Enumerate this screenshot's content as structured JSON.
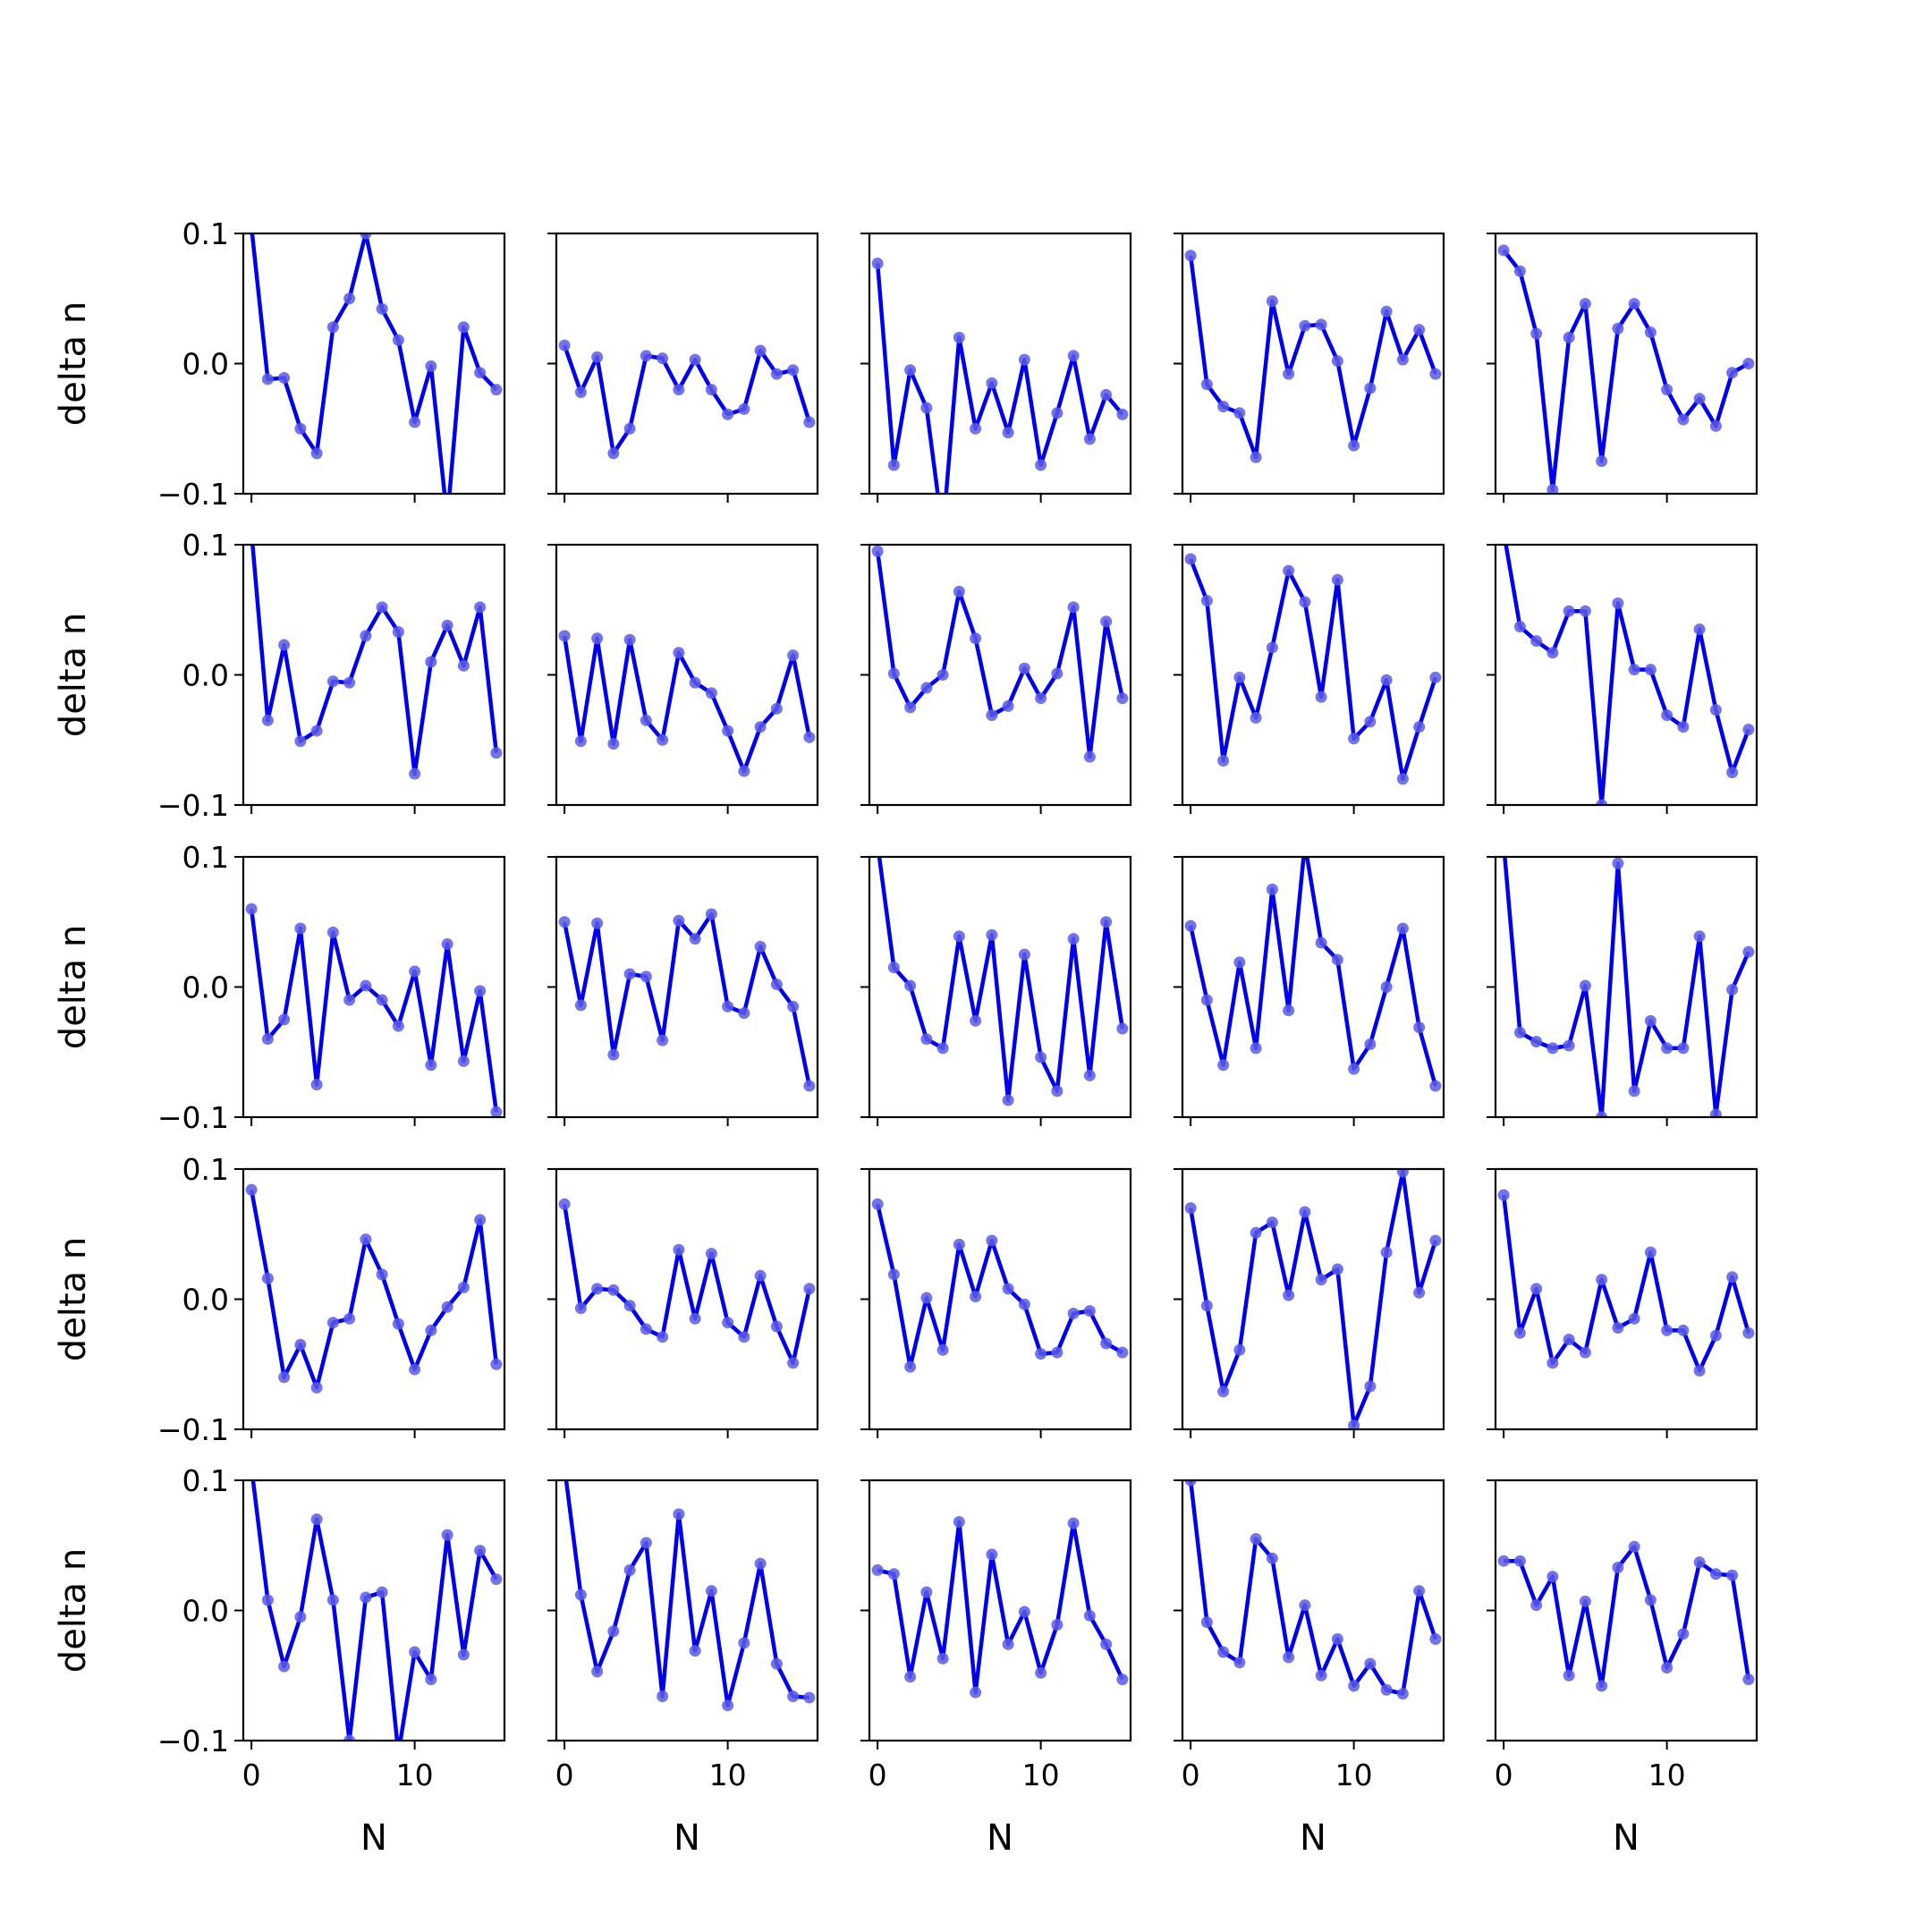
{
  "figure": {
    "xlabel": "N",
    "ylabel": "delta n",
    "x_tick_labels": [
      "0",
      "10"
    ],
    "y_tick_labels": [
      "0.1",
      "0.0",
      "−0.1"
    ]
  },
  "colors": {
    "line": "#0000ee",
    "marker": "#5a5ae6",
    "axes": "#000000",
    "background": "#ffffff"
  },
  "chart_data": {
    "type": "line",
    "layout": "grid-5x5",
    "shared_x": true,
    "shared_y": true,
    "x": [
      0,
      1,
      2,
      3,
      4,
      5,
      6,
      7,
      8,
      9,
      10,
      11,
      12,
      13,
      14,
      15
    ],
    "xlim": [
      -0.5,
      15.5
    ],
    "ylim": [
      -0.1,
      0.1
    ],
    "xlabel": "N",
    "ylabel": "delta n",
    "grid": false,
    "panels": [
      {
        "values": [
          0.105,
          -0.012,
          -0.011,
          -0.05,
          -0.069,
          0.028,
          0.05,
          0.1,
          0.042,
          0.018,
          -0.045,
          -0.002,
          -0.12,
          0.028,
          -0.007,
          -0.02
        ]
      },
      {
        "values": [
          0.014,
          -0.022,
          0.005,
          -0.069,
          -0.05,
          0.006,
          0.004,
          -0.02,
          0.003,
          -0.02,
          -0.039,
          -0.035,
          0.01,
          -0.008,
          -0.005,
          -0.045
        ]
      },
      {
        "values": [
          0.077,
          -0.078,
          -0.005,
          -0.034,
          -0.13,
          0.02,
          -0.05,
          -0.015,
          -0.053,
          0.003,
          -0.078,
          -0.038,
          0.006,
          -0.058,
          -0.024,
          -0.039
        ]
      },
      {
        "values": [
          0.083,
          -0.016,
          -0.033,
          -0.038,
          -0.072,
          0.048,
          -0.008,
          0.029,
          0.03,
          0.002,
          -0.063,
          -0.019,
          0.04,
          0.003,
          0.026,
          -0.008
        ]
      },
      {
        "values": [
          0.087,
          0.071,
          0.023,
          -0.097,
          0.02,
          0.046,
          -0.075,
          0.027,
          0.046,
          0.024,
          -0.02,
          -0.043,
          -0.027,
          -0.048,
          -0.007,
          0.0
        ]
      },
      {
        "values": [
          0.11,
          -0.035,
          0.023,
          -0.051,
          -0.043,
          -0.005,
          -0.006,
          0.03,
          0.052,
          0.033,
          -0.076,
          0.01,
          0.038,
          0.007,
          0.052,
          -0.06
        ]
      },
      {
        "values": [
          0.03,
          -0.051,
          0.028,
          -0.053,
          0.027,
          -0.035,
          -0.05,
          0.017,
          -0.006,
          -0.014,
          -0.043,
          -0.074,
          -0.04,
          -0.026,
          0.015,
          -0.048
        ]
      },
      {
        "values": [
          0.095,
          0.001,
          -0.025,
          -0.01,
          0.0,
          0.064,
          0.028,
          -0.031,
          -0.024,
          0.005,
          -0.018,
          0.001,
          0.052,
          -0.063,
          0.041,
          -0.018
        ]
      },
      {
        "values": [
          0.089,
          0.057,
          -0.066,
          -0.002,
          -0.033,
          0.021,
          0.08,
          0.056,
          -0.017,
          0.073,
          -0.049,
          -0.036,
          -0.004,
          -0.08,
          -0.04,
          -0.002
        ]
      },
      {
        "values": [
          0.11,
          0.037,
          0.026,
          0.017,
          0.049,
          0.049,
          -0.1,
          0.055,
          0.004,
          0.004,
          -0.031,
          -0.04,
          0.035,
          -0.027,
          -0.075,
          -0.042
        ]
      },
      {
        "values": [
          0.06,
          -0.04,
          -0.025,
          0.045,
          -0.075,
          0.042,
          -0.01,
          0.001,
          -0.01,
          -0.03,
          0.012,
          -0.06,
          0.033,
          -0.057,
          -0.003,
          -0.096
        ]
      },
      {
        "values": [
          0.05,
          -0.014,
          0.049,
          -0.052,
          0.01,
          0.008,
          -0.041,
          0.051,
          0.037,
          0.056,
          -0.015,
          -0.02,
          0.031,
          0.002,
          -0.015,
          -0.076
        ]
      },
      {
        "values": [
          0.11,
          0.015,
          0.001,
          -0.04,
          -0.047,
          0.039,
          -0.026,
          0.04,
          -0.087,
          0.025,
          -0.054,
          -0.08,
          0.037,
          -0.068,
          0.05,
          -0.032
        ]
      },
      {
        "values": [
          0.047,
          -0.01,
          -0.06,
          0.019,
          -0.047,
          0.075,
          -0.018,
          0.11,
          0.034,
          0.021,
          -0.063,
          -0.044,
          0.0,
          0.045,
          -0.031,
          -0.076
        ]
      },
      {
        "values": [
          0.11,
          -0.035,
          -0.042,
          -0.047,
          -0.045,
          0.001,
          -0.1,
          0.095,
          -0.08,
          -0.026,
          -0.047,
          -0.047,
          0.039,
          -0.098,
          -0.002,
          0.027
        ]
      },
      {
        "values": [
          0.084,
          0.016,
          -0.06,
          -0.035,
          -0.068,
          -0.018,
          -0.015,
          0.046,
          0.019,
          -0.019,
          -0.054,
          -0.024,
          -0.006,
          0.009,
          0.061,
          -0.05
        ]
      },
      {
        "values": [
          0.073,
          -0.007,
          0.008,
          0.007,
          -0.005,
          -0.023,
          -0.029,
          0.038,
          -0.015,
          0.035,
          -0.018,
          -0.029,
          0.018,
          -0.021,
          -0.049,
          0.008
        ]
      },
      {
        "values": [
          0.073,
          0.019,
          -0.052,
          0.001,
          -0.039,
          0.042,
          0.002,
          0.045,
          0.008,
          -0.004,
          -0.042,
          -0.041,
          -0.011,
          -0.009,
          -0.034,
          -0.041
        ]
      },
      {
        "values": [
          0.07,
          -0.005,
          -0.071,
          -0.039,
          0.051,
          0.059,
          0.003,
          0.067,
          0.015,
          0.023,
          -0.097,
          -0.067,
          0.036,
          0.098,
          0.005,
          0.045
        ]
      },
      {
        "values": [
          0.08,
          -0.026,
          0.008,
          -0.049,
          -0.031,
          -0.041,
          0.015,
          -0.022,
          -0.015,
          0.036,
          -0.024,
          -0.024,
          -0.055,
          -0.028,
          0.017,
          -0.026
        ]
      },
      {
        "values": [
          0.11,
          0.008,
          -0.043,
          -0.005,
          0.07,
          0.008,
          -0.1,
          0.01,
          0.014,
          -0.11,
          -0.032,
          -0.053,
          0.058,
          -0.034,
          0.046,
          0.024
        ]
      },
      {
        "values": [
          0.11,
          0.012,
          -0.047,
          -0.016,
          0.031,
          0.052,
          -0.066,
          0.074,
          -0.031,
          0.015,
          -0.073,
          -0.025,
          0.036,
          -0.041,
          -0.066,
          -0.067
        ]
      },
      {
        "values": [
          0.031,
          0.028,
          -0.051,
          0.014,
          -0.037,
          0.068,
          -0.063,
          0.043,
          -0.026,
          -0.001,
          -0.048,
          -0.011,
          0.067,
          -0.004,
          -0.026,
          -0.053
        ]
      },
      {
        "values": [
          0.1,
          -0.009,
          -0.032,
          -0.04,
          0.055,
          0.04,
          -0.036,
          0.004,
          -0.05,
          -0.022,
          -0.058,
          -0.041,
          -0.061,
          -0.064,
          0.015,
          -0.022
        ]
      },
      {
        "values": [
          0.038,
          0.038,
          0.004,
          0.026,
          -0.05,
          0.007,
          -0.058,
          0.033,
          0.049,
          0.008,
          -0.044,
          -0.018,
          0.037,
          0.028,
          0.027,
          -0.053
        ]
      }
    ]
  }
}
